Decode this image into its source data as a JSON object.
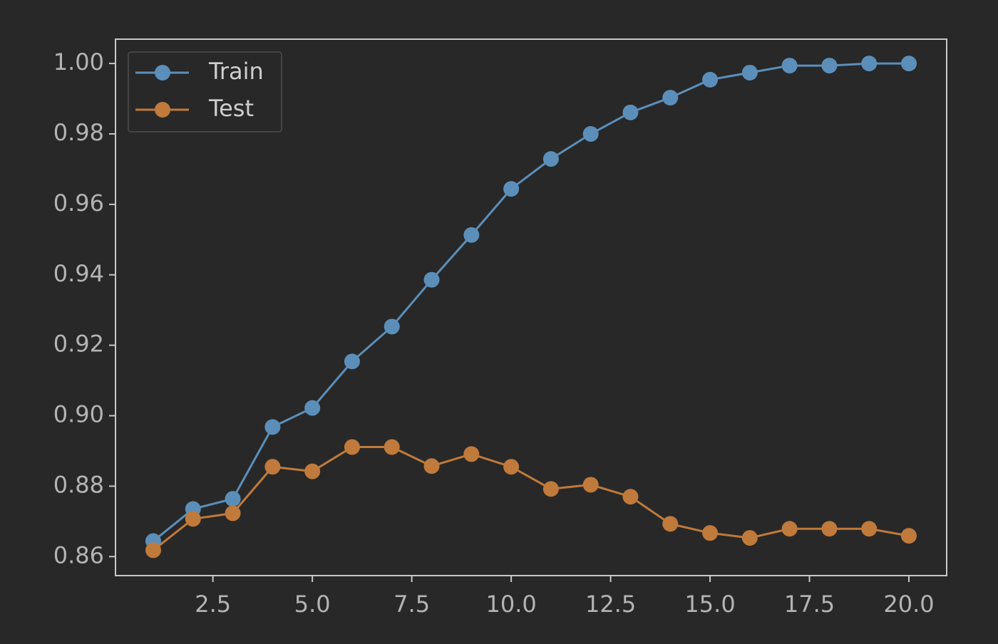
{
  "chart_data": {
    "type": "line",
    "x": [
      1,
      2,
      3,
      4,
      5,
      6,
      7,
      8,
      9,
      10,
      11,
      12,
      13,
      14,
      15,
      16,
      17,
      18,
      19,
      20
    ],
    "series": [
      {
        "name": "Train",
        "color": "#5b8fba",
        "values": [
          0.8644,
          0.8735,
          0.8764,
          0.8968,
          0.9022,
          0.9154,
          0.9253,
          0.9386,
          0.9513,
          0.9644,
          0.9729,
          0.98,
          0.9861,
          0.9903,
          0.9954,
          0.9974,
          0.9994,
          0.9994,
          1.0,
          1.0
        ]
      },
      {
        "name": "Test",
        "color": "#c07a3b",
        "values": [
          0.8618,
          0.8707,
          0.8723,
          0.8855,
          0.8842,
          0.8911,
          0.8911,
          0.8857,
          0.8891,
          0.8855,
          0.8792,
          0.8804,
          0.877,
          0.8693,
          0.8667,
          0.8653,
          0.8679,
          0.8679,
          0.8679,
          0.8659
        ]
      }
    ],
    "xlim": [
      0.05,
      20.95
    ],
    "xticks": [
      2.5,
      {
        "value": 5,
        "label": "5.0"
      },
      7.5,
      {
        "value": 10,
        "label": "10.0"
      },
      12.5,
      {
        "value": 15,
        "label": "15.0"
      },
      17.5,
      {
        "value": 20,
        "label": "20.0"
      }
    ],
    "ylim": [
      0.8546,
      1.0069
    ],
    "yticks": [
      0.86,
      0.88,
      {
        "value": 0.9,
        "label": "0.90"
      },
      0.92,
      0.94,
      0.96,
      0.98,
      {
        "value": 1,
        "label": "1.00"
      }
    ],
    "grid": false,
    "legend": "upper-left"
  }
}
